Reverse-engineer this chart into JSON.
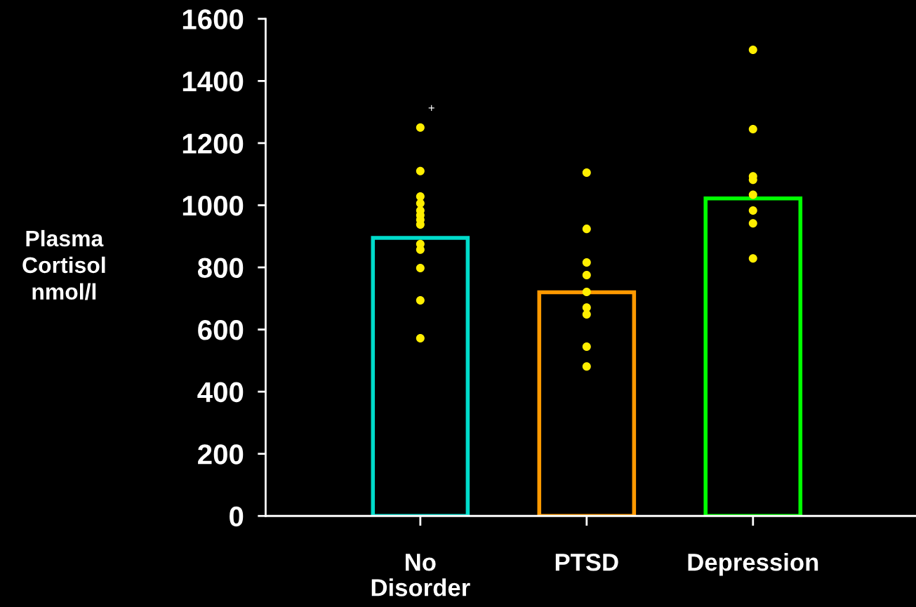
{
  "chart_data": {
    "type": "bar",
    "ylabel": "Plasma\nCortisol\nnmol/l",
    "categories": [
      "No\nDisorder",
      "PTSD",
      "Depression"
    ],
    "ylim": [
      0,
      1600
    ],
    "yticks": [
      0,
      200,
      400,
      600,
      800,
      1000,
      1200,
      1400,
      1600
    ],
    "grid": false,
    "marker": "circle",
    "series": [
      {
        "values": [
          895,
          720,
          1022
        ],
        "colors": [
          "#00dccb",
          "#ff9900",
          "#00ff00"
        ]
      },
      {
        "type": "scatter",
        "color": "#ffee00",
        "x": [
          "No\nDisorder",
          "No\nDisorder",
          "No\nDisorder",
          "No\nDisorder",
          "No\nDisorder",
          "No\nDisorder",
          "No\nDisorder",
          "No\nDisorder",
          "No\nDisorder",
          "No\nDisorder",
          "No\nDisorder",
          "No\nDisorder",
          "No\nDisorder",
          "PTSD",
          "PTSD",
          "PTSD",
          "PTSD",
          "PTSD",
          "PTSD",
          "PTSD",
          "PTSD",
          "PTSD",
          "Depression",
          "Depression",
          "Depression",
          "Depression",
          "Depression",
          "Depression",
          "Depression",
          "Depression"
        ],
        "values": [
          1250,
          1110,
          1028,
          1006,
          983,
          968,
          953,
          938,
          875,
          857,
          798,
          694,
          572,
          1105,
          924,
          816,
          775,
          721,
          671,
          649,
          545,
          481,
          1500,
          1245,
          1093,
          1082,
          1034,
          983,
          942,
          829
        ]
      }
    ],
    "annotations": [
      "+"
    ]
  }
}
